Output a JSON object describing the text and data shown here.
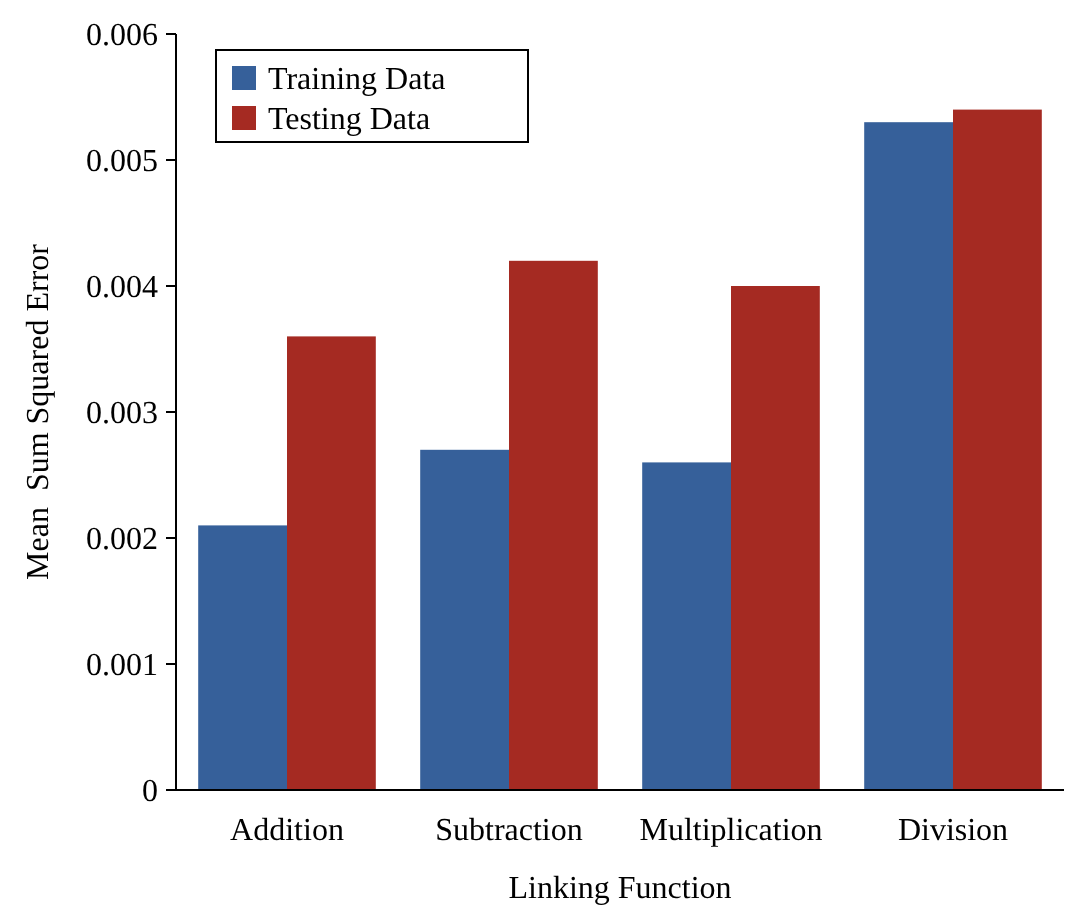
{
  "chart_data": {
    "type": "bar",
    "xlabel": "Linking Function",
    "ylabel": "Mean  Sum Squared Error",
    "categories": [
      "Addition",
      "Subtraction",
      "Multiplication",
      "Division"
    ],
    "series": [
      {
        "name": "Training Data",
        "color": "#36609a",
        "values": [
          0.0021,
          0.0027,
          0.0026,
          0.0053
        ]
      },
      {
        "name": "Testing Data",
        "color": "#a52a22",
        "values": [
          0.0036,
          0.0042,
          0.004,
          0.0054
        ]
      }
    ],
    "ylim": [
      0,
      0.006
    ],
    "yticks": [
      0,
      0.001,
      0.002,
      0.003,
      0.004,
      0.005,
      0.006
    ],
    "grid": false,
    "legend": "top left"
  }
}
